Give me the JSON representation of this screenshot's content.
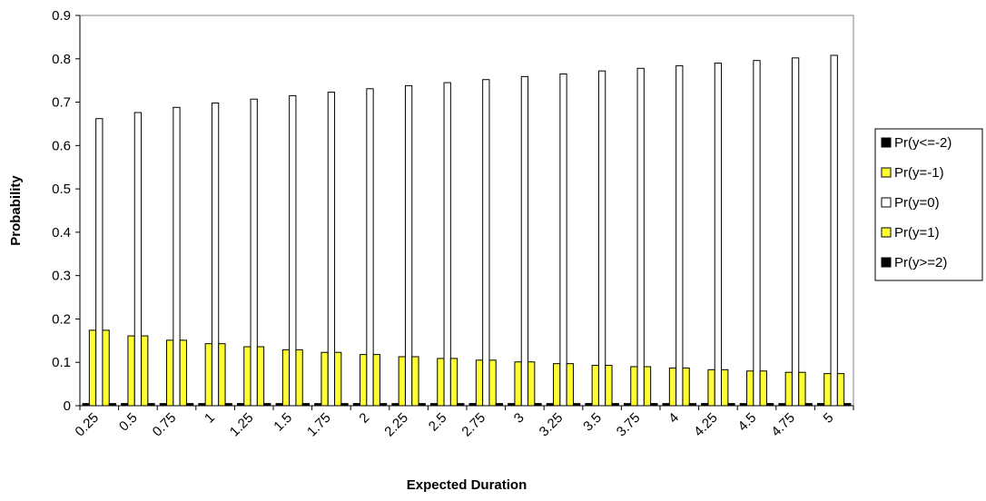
{
  "chart_data": {
    "type": "bar",
    "title": "",
    "xlabel": "Expected Duration",
    "ylabel": "Probability",
    "ylim": [
      0,
      0.9
    ],
    "yticks": [
      "0",
      "0.1",
      "0.2",
      "0.3",
      "0.4",
      "0.5",
      "0.6",
      "0.7",
      "0.8",
      "0.9"
    ],
    "grid": false,
    "legend_position": "right",
    "categories": [
      "0.25",
      "0.5",
      "0.75",
      "1",
      "1.25",
      "1.5",
      "1.75",
      "2",
      "2.25",
      "2.5",
      "2.75",
      "3",
      "3.25",
      "3.5",
      "3.75",
      "4",
      "4.25",
      "4.5",
      "4.75",
      "5"
    ],
    "series": [
      {
        "name": "Pr(y<=-2)",
        "color": "#000000",
        "values": [
          0.005,
          0.005,
          0.005,
          0.005,
          0.005,
          0.005,
          0.005,
          0.005,
          0.005,
          0.005,
          0.005,
          0.005,
          0.005,
          0.005,
          0.005,
          0.005,
          0.005,
          0.005,
          0.005,
          0.005
        ]
      },
      {
        "name": "Pr(y=-1)",
        "color": "#FFFF33",
        "values": [
          0.174,
          0.161,
          0.151,
          0.143,
          0.136,
          0.129,
          0.123,
          0.118,
          0.113,
          0.109,
          0.105,
          0.101,
          0.097,
          0.093,
          0.09,
          0.087,
          0.083,
          0.08,
          0.077,
          0.074
        ]
      },
      {
        "name": "Pr(y=0)",
        "color": "#FFFFFF",
        "values": [
          0.662,
          0.676,
          0.688,
          0.698,
          0.707,
          0.715,
          0.723,
          0.731,
          0.738,
          0.745,
          0.752,
          0.759,
          0.765,
          0.772,
          0.778,
          0.784,
          0.79,
          0.796,
          0.802,
          0.808
        ]
      },
      {
        "name": "Pr(y=1)",
        "color": "#FFFF33",
        "values": [
          0.174,
          0.161,
          0.151,
          0.143,
          0.136,
          0.129,
          0.123,
          0.118,
          0.113,
          0.109,
          0.105,
          0.101,
          0.097,
          0.093,
          0.09,
          0.087,
          0.083,
          0.08,
          0.077,
          0.074
        ]
      },
      {
        "name": "Pr(y>=2)",
        "color": "#000000",
        "values": [
          0.005,
          0.005,
          0.005,
          0.005,
          0.005,
          0.005,
          0.005,
          0.005,
          0.005,
          0.005,
          0.005,
          0.005,
          0.005,
          0.005,
          0.005,
          0.005,
          0.005,
          0.005,
          0.005,
          0.005
        ]
      }
    ]
  }
}
